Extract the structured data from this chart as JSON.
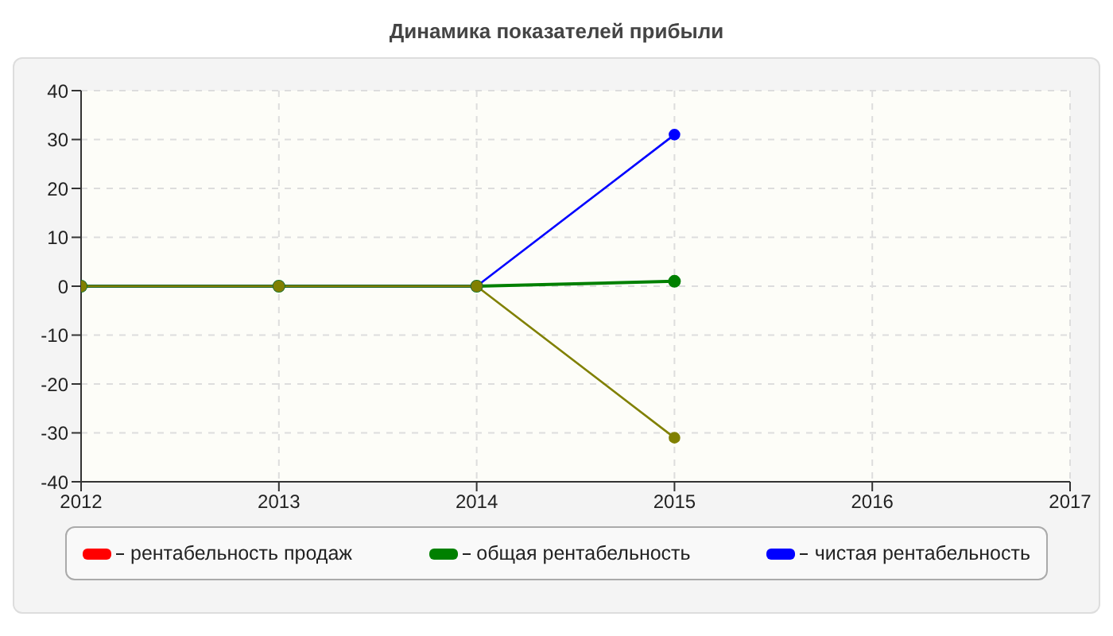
{
  "chart_data": {
    "type": "line",
    "title": "Динамика показателей прибыли",
    "x": [
      2012,
      2013,
      2014,
      2015
    ],
    "series": [
      {
        "name": "рентабельность продаж",
        "color": "#ff0000",
        "values": [
          null,
          null,
          null,
          null
        ]
      },
      {
        "name": "общая рентабельность",
        "color": "#008000",
        "values": [
          0,
          0,
          0,
          1
        ]
      },
      {
        "name": "чистая рентабельность",
        "color": "#0000ff",
        "values": [
          0,
          0,
          0,
          31
        ]
      },
      {
        "color": "#808000",
        "values": [
          0,
          0,
          0,
          -31
        ]
      }
    ],
    "xlim": [
      2012,
      2017
    ],
    "xticks": [
      2012,
      2013,
      2014,
      2015,
      2016,
      2017
    ],
    "ylim": [
      -40,
      40
    ],
    "yticks": [
      -40,
      -30,
      -20,
      -10,
      0,
      10,
      20,
      30,
      40
    ],
    "grid": true,
    "legend": "bottom",
    "marker": "circle",
    "line_style": "solid"
  }
}
